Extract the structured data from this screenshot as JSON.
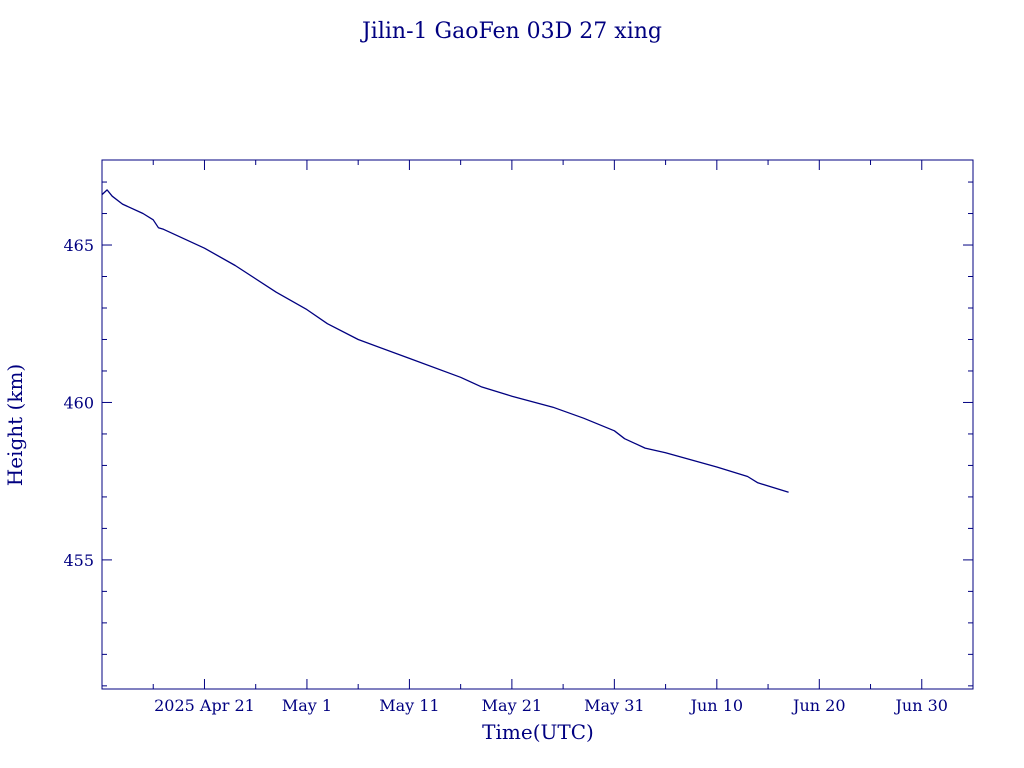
{
  "chart_data": {
    "type": "line",
    "title": "Jilin-1 GaoFen 03D 27 xing",
    "xlabel": "Time(UTC)",
    "ylabel": "Height (km)",
    "xlim": [
      "2025-04-11",
      "2025-07-05"
    ],
    "ylim": [
      450.9,
      467.7
    ],
    "x_ticks": [
      {
        "date": "2025-04-21",
        "label": "2025 Apr 21"
      },
      {
        "date": "2025-05-01",
        "label": "May  1"
      },
      {
        "date": "2025-05-11",
        "label": "May 11"
      },
      {
        "date": "2025-05-21",
        "label": "May 21"
      },
      {
        "date": "2025-05-31",
        "label": "May 31"
      },
      {
        "date": "2025-06-10",
        "label": "Jun 10"
      },
      {
        "date": "2025-06-20",
        "label": "Jun 20"
      },
      {
        "date": "2025-06-30",
        "label": "Jun 30"
      }
    ],
    "y_ticks": [
      455,
      460,
      465
    ],
    "grid": false,
    "series": [
      {
        "name": "",
        "color": "#000080",
        "points": [
          [
            "2025-04-11",
            466.6
          ],
          [
            "2025-04-11",
            466.75
          ],
          [
            "2025-04-12",
            466.55
          ],
          [
            "2025-04-13",
            466.3
          ],
          [
            "2025-04-15",
            466.0
          ],
          [
            "2025-04-16",
            465.8
          ],
          [
            "2025-04-16",
            465.55
          ],
          [
            "2025-04-17",
            465.5
          ],
          [
            "2025-04-21",
            464.9
          ],
          [
            "2025-04-24",
            464.35
          ],
          [
            "2025-04-28",
            463.5
          ],
          [
            "2025-05-01",
            462.95
          ],
          [
            "2025-05-03",
            462.5
          ],
          [
            "2025-05-06",
            462.0
          ],
          [
            "2025-05-11",
            461.4
          ],
          [
            "2025-05-16",
            460.8
          ],
          [
            "2025-05-18",
            460.5
          ],
          [
            "2025-05-21",
            460.2
          ],
          [
            "2025-05-25",
            459.85
          ],
          [
            "2025-05-28",
            459.5
          ],
          [
            "2025-05-31",
            459.1
          ],
          [
            "2025-06-01",
            458.85
          ],
          [
            "2025-06-03",
            458.55
          ],
          [
            "2025-06-05",
            458.4
          ],
          [
            "2025-06-10",
            457.95
          ],
          [
            "2025-06-13",
            457.65
          ],
          [
            "2025-06-14",
            457.45
          ],
          [
            "2025-06-17",
            457.15
          ]
        ]
      }
    ]
  }
}
